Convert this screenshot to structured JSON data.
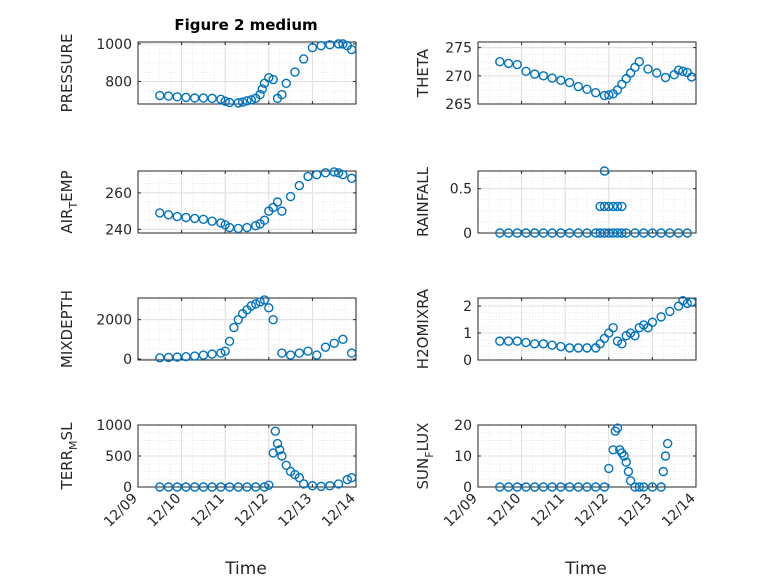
{
  "figure": {
    "title": "Figure 2 medium"
  },
  "chart_data": [
    {
      "type": "scatter",
      "ylabel": "PRESSURE",
      "xlim": [
        0,
        5
      ],
      "ylim": [
        680,
        1010
      ],
      "yticks": [
        800,
        1000
      ],
      "xticklabels": [],
      "x": [
        0.5,
        0.7,
        0.9,
        1.1,
        1.3,
        1.5,
        1.7,
        1.9,
        2.0,
        2.1,
        2.3,
        2.4,
        2.5,
        2.6,
        2.7,
        2.8,
        2.85,
        2.9,
        3.0,
        3.1,
        3.2,
        3.3,
        3.4,
        3.6,
        3.8,
        4.0,
        4.2,
        4.4,
        4.6,
        4.7,
        4.8,
        4.9
      ],
      "y": [
        725,
        722,
        718,
        715,
        712,
        712,
        710,
        705,
        695,
        688,
        686,
        690,
        697,
        702,
        710,
        730,
        760,
        790,
        820,
        810,
        710,
        730,
        790,
        850,
        920,
        980,
        990,
        995,
        1000,
        1000,
        990,
        970
      ],
      "color": "#0072BD"
    },
    {
      "type": "scatter",
      "ylabel": "THETA",
      "xlim": [
        0,
        5
      ],
      "ylim": [
        265,
        276
      ],
      "yticks": [
        265,
        270,
        275
      ],
      "xticklabels": [],
      "x": [
        0.5,
        0.7,
        0.9,
        1.1,
        1.3,
        1.5,
        1.7,
        1.9,
        2.1,
        2.3,
        2.5,
        2.7,
        2.9,
        3.0,
        3.1,
        3.2,
        3.3,
        3.4,
        3.5,
        3.6,
        3.7,
        3.9,
        4.1,
        4.3,
        4.5,
        4.6,
        4.7,
        4.8,
        4.9
      ],
      "y": [
        272.5,
        272.2,
        272,
        270.8,
        270.3,
        270,
        269.6,
        269.2,
        268.8,
        268.1,
        267.6,
        267,
        266.5,
        266.6,
        266.8,
        267.5,
        268.5,
        269.5,
        270.5,
        271.5,
        272.5,
        271.2,
        270.5,
        269.7,
        270.2,
        271,
        270.8,
        270.6,
        269.8
      ],
      "color": "#0072BD"
    },
    {
      "type": "scatter",
      "ylabel": "AIR_TEMP",
      "xlim": [
        0,
        5
      ],
      "ylim": [
        238,
        272
      ],
      "yticks": [
        240,
        260
      ],
      "xticklabels": [],
      "x": [
        0.5,
        0.7,
        0.9,
        1.1,
        1.3,
        1.5,
        1.7,
        1.9,
        2.0,
        2.1,
        2.3,
        2.5,
        2.7,
        2.8,
        2.9,
        3.0,
        3.1,
        3.2,
        3.3,
        3.5,
        3.7,
        3.9,
        4.1,
        4.3,
        4.5,
        4.6,
        4.7,
        4.9
      ],
      "y": [
        249,
        248,
        247,
        246.5,
        246,
        245.5,
        244.5,
        243.5,
        242.5,
        241,
        240.5,
        241,
        242,
        243,
        245,
        250,
        252,
        255,
        250,
        258,
        264,
        269,
        270,
        271,
        271.5,
        271,
        270,
        268
      ],
      "color": "#0072BD"
    },
    {
      "type": "scatter",
      "ylabel": "RAINFALL",
      "xlim": [
        0,
        5
      ],
      "ylim": [
        0,
        0.7
      ],
      "yticks": [
        0,
        0.5
      ],
      "xticklabels": [],
      "x": [
        0.5,
        0.7,
        0.9,
        1.1,
        1.3,
        1.5,
        1.7,
        1.9,
        2.1,
        2.3,
        2.5,
        2.7,
        2.8,
        2.9,
        3.0,
        3.1,
        3.2,
        3.3,
        3.4,
        3.6,
        3.8,
        4.0,
        4.2,
        4.4,
        4.6,
        4.8,
        2.8,
        2.9,
        3.0,
        3.1,
        3.2,
        3.3,
        2.9
      ],
      "y": [
        0,
        0,
        0,
        0,
        0,
        0,
        0,
        0,
        0,
        0,
        0,
        0,
        0,
        0,
        0,
        0,
        0,
        0,
        0,
        0,
        0,
        0,
        0,
        0,
        0,
        0,
        0.3,
        0.3,
        0.3,
        0.3,
        0.3,
        0.3,
        0.7
      ],
      "color": "#0072BD"
    },
    {
      "type": "scatter",
      "ylabel": "MIXDEPTH",
      "xlim": [
        0,
        5
      ],
      "ylim": [
        -50,
        3100
      ],
      "yticks": [
        0,
        2000
      ],
      "xticklabels": [],
      "x": [
        0.5,
        0.7,
        0.9,
        1.1,
        1.3,
        1.5,
        1.7,
        1.9,
        2.0,
        2.1,
        2.2,
        2.3,
        2.4,
        2.5,
        2.6,
        2.7,
        2.8,
        2.9,
        3.0,
        3.1,
        3.3,
        3.5,
        3.7,
        3.9,
        4.1,
        4.3,
        4.5,
        4.7,
        4.9
      ],
      "y": [
        60,
        80,
        100,
        120,
        150,
        200,
        250,
        300,
        400,
        900,
        1600,
        2000,
        2300,
        2500,
        2700,
        2800,
        2900,
        3000,
        2600,
        2000,
        300,
        200,
        300,
        400,
        200,
        600,
        800,
        1000,
        300
      ],
      "color": "#0072BD"
    },
    {
      "type": "scatter",
      "ylabel": "H2OMIXRA",
      "xlim": [
        0,
        5
      ],
      "ylim": [
        0,
        2.3
      ],
      "yticks": [
        0,
        1,
        2
      ],
      "xticklabels": [],
      "x": [
        0.5,
        0.7,
        0.9,
        1.1,
        1.3,
        1.5,
        1.7,
        1.9,
        2.1,
        2.3,
        2.5,
        2.7,
        2.8,
        2.9,
        3.0,
        3.1,
        3.2,
        3.3,
        3.4,
        3.5,
        3.6,
        3.7,
        3.8,
        3.9,
        4.0,
        4.2,
        4.4,
        4.6,
        4.7,
        4.8,
        4.9
      ],
      "y": [
        0.7,
        0.7,
        0.7,
        0.65,
        0.6,
        0.6,
        0.55,
        0.5,
        0.45,
        0.45,
        0.45,
        0.45,
        0.6,
        0.8,
        1.0,
        1.2,
        0.7,
        0.6,
        0.9,
        1.0,
        0.9,
        1.2,
        1.3,
        1.2,
        1.4,
        1.6,
        1.8,
        2.0,
        2.2,
        2.1,
        2.15
      ],
      "color": "#0072BD"
    },
    {
      "type": "scatter",
      "ylabel": "TERR_MSL",
      "xlim": [
        0,
        5
      ],
      "ylim": [
        0,
        1000
      ],
      "yticks": [
        0,
        500,
        1000
      ],
      "xticklabels": [
        "12/09",
        "12/10",
        "12/11",
        "12/12",
        "12/13",
        "12/14"
      ],
      "xlabel": "Time",
      "x": [
        0.5,
        0.7,
        0.9,
        1.1,
        1.3,
        1.5,
        1.7,
        1.9,
        2.1,
        2.3,
        2.5,
        2.7,
        2.9,
        3.0,
        3.1,
        3.15,
        3.2,
        3.25,
        3.3,
        3.4,
        3.5,
        3.6,
        3.7,
        3.8,
        4.0,
        4.2,
        4.4,
        4.6,
        4.8,
        4.9
      ],
      "y": [
        0,
        0,
        0,
        0,
        0,
        0,
        0,
        0,
        0,
        0,
        0,
        0,
        0,
        30,
        550,
        900,
        700,
        600,
        500,
        350,
        250,
        200,
        150,
        50,
        20,
        10,
        20,
        50,
        120,
        150
      ],
      "color": "#0072BD"
    },
    {
      "type": "scatter",
      "ylabel": "SUN_FLUX",
      "xlim": [
        0,
        5
      ],
      "ylim": [
        0,
        20
      ],
      "yticks": [
        0,
        10,
        20
      ],
      "xticklabels": [
        "12/09",
        "12/10",
        "12/11",
        "12/12",
        "12/13",
        "12/14"
      ],
      "xlabel": "Time",
      "x": [
        0.5,
        0.7,
        0.9,
        1.1,
        1.3,
        1.5,
        1.7,
        1.9,
        2.1,
        2.3,
        2.5,
        2.7,
        2.9,
        3.0,
        3.1,
        3.15,
        3.2,
        3.25,
        3.3,
        3.35,
        3.4,
        3.45,
        3.5,
        3.6,
        3.7,
        3.8,
        4.0,
        4.2,
        4.25,
        4.3,
        4.35
      ],
      "y": [
        0,
        0,
        0,
        0,
        0,
        0,
        0,
        0,
        0,
        0,
        0,
        0,
        0,
        6,
        12,
        18,
        19,
        12,
        11,
        10,
        8,
        5,
        2,
        0,
        0,
        0,
        0,
        0,
        5,
        10,
        14
      ],
      "color": "#0072BD"
    }
  ]
}
